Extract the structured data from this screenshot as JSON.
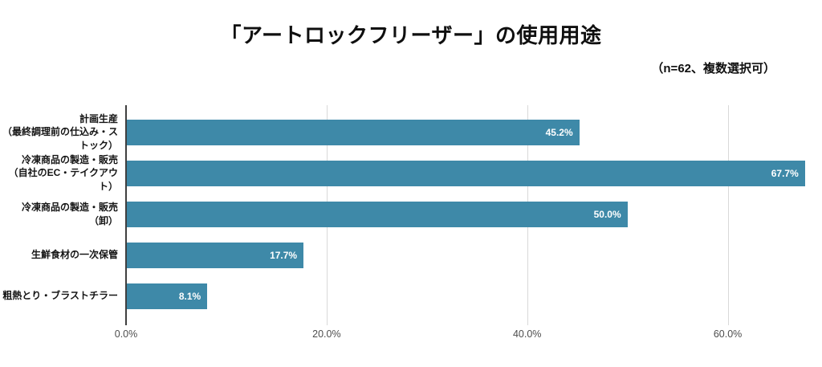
{
  "title": "「アートロックフリーザー」の使用用途",
  "subtitle": "（n=62、複数選択可）",
  "colors": {
    "bar": "#3e89a8",
    "grid": "#d9d9d9",
    "axis": "#3f3f3f",
    "tick_label": "#4d4d4d",
    "value_label": "#ffffff",
    "background": "#ffffff"
  },
  "chart_data": {
    "type": "bar",
    "orientation": "horizontal",
    "title": "「アートロックフリーザー」の使用用途",
    "subtitle": "（n=62、複数選択可）",
    "categories": [
      [
        "計画生産",
        "（最終調理前の仕込み・ストック）"
      ],
      [
        "冷凍商品の製造・販売",
        "（自社のEC・テイクアウト）"
      ],
      [
        "冷凍商品の製造・販売（卸）"
      ],
      [
        "生鮮食材の一次保管"
      ],
      [
        "粗熱とり・ブラストチラー"
      ]
    ],
    "values": [
      45.2,
      67.7,
      50.0,
      17.7,
      8.1
    ],
    "value_labels": [
      "45.2%",
      "67.7%",
      "50.0%",
      "17.7%",
      "8.1%"
    ],
    "x_ticks": [
      0,
      20,
      40,
      60
    ],
    "x_tick_labels": [
      "0.0%",
      "20.0%",
      "40.0%",
      "60.0%"
    ],
    "xlim": [
      0,
      68.6
    ],
    "xlabel": "",
    "ylabel": "",
    "grid": true,
    "legend": false
  }
}
